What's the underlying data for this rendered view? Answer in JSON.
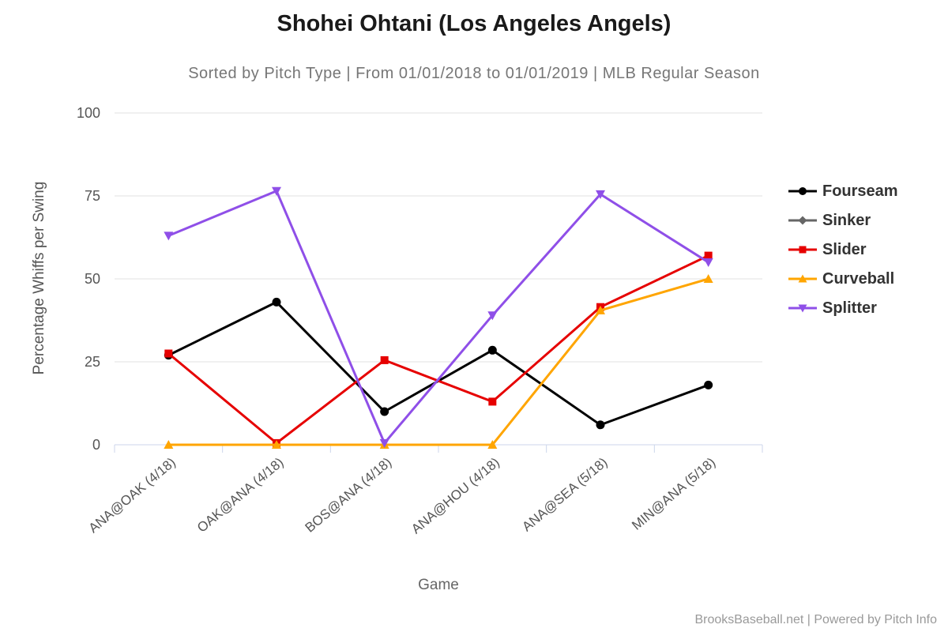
{
  "page": {
    "title": "Shohei Ohtani (Los Angeles Angels)",
    "subtitle": "Sorted by Pitch Type | From 01/01/2018 to 01/01/2019 | MLB Regular Season",
    "footer": "BrooksBaseball.net | Powered by Pitch Info"
  },
  "chart_data": {
    "type": "line",
    "title": "Shohei Ohtani (Los Angeles Angels)",
    "subtitle": "Sorted by Pitch Type | From 01/01/2018 to 01/01/2019 | MLB Regular Season",
    "xlabel": "Game",
    "ylabel": "Percentage Whiffs per Swing",
    "ylim": [
      0,
      100
    ],
    "yticks": [
      0,
      25,
      50,
      75,
      100
    ],
    "grid": true,
    "legend_position": "right",
    "categories": [
      "ANA@OAK (4/18)",
      "OAK@ANA (4/18)",
      "BOS@ANA (4/18)",
      "ANA@HOU (4/18)",
      "ANA@SEA (5/18)",
      "MIN@ANA (5/18)"
    ],
    "series": [
      {
        "name": "Fourseam",
        "color": "#000000",
        "marker": "circle",
        "values": [
          27,
          43,
          10,
          28.5,
          6,
          18
        ]
      },
      {
        "name": "Sinker",
        "color": "#666666",
        "marker": "diamond",
        "values": [
          null,
          null,
          null,
          null,
          null,
          null
        ]
      },
      {
        "name": "Slider",
        "color": "#e60000",
        "marker": "square",
        "values": [
          27.5,
          0.5,
          25.5,
          13,
          41.5,
          57
        ]
      },
      {
        "name": "Curveball",
        "color": "#ffa500",
        "marker": "triangle-up",
        "values": [
          0,
          0,
          0,
          0,
          40.5,
          50
        ]
      },
      {
        "name": "Splitter",
        "color": "#8f4fe8",
        "marker": "triangle-down",
        "values": [
          63,
          76.5,
          0.5,
          39,
          75.5,
          55
        ]
      }
    ],
    "axis_colors": {
      "gridline": "#e0e0e0",
      "axis_line": "#ccd6eb",
      "tick": "#ccd6eb",
      "tick_label": "#555555"
    }
  }
}
